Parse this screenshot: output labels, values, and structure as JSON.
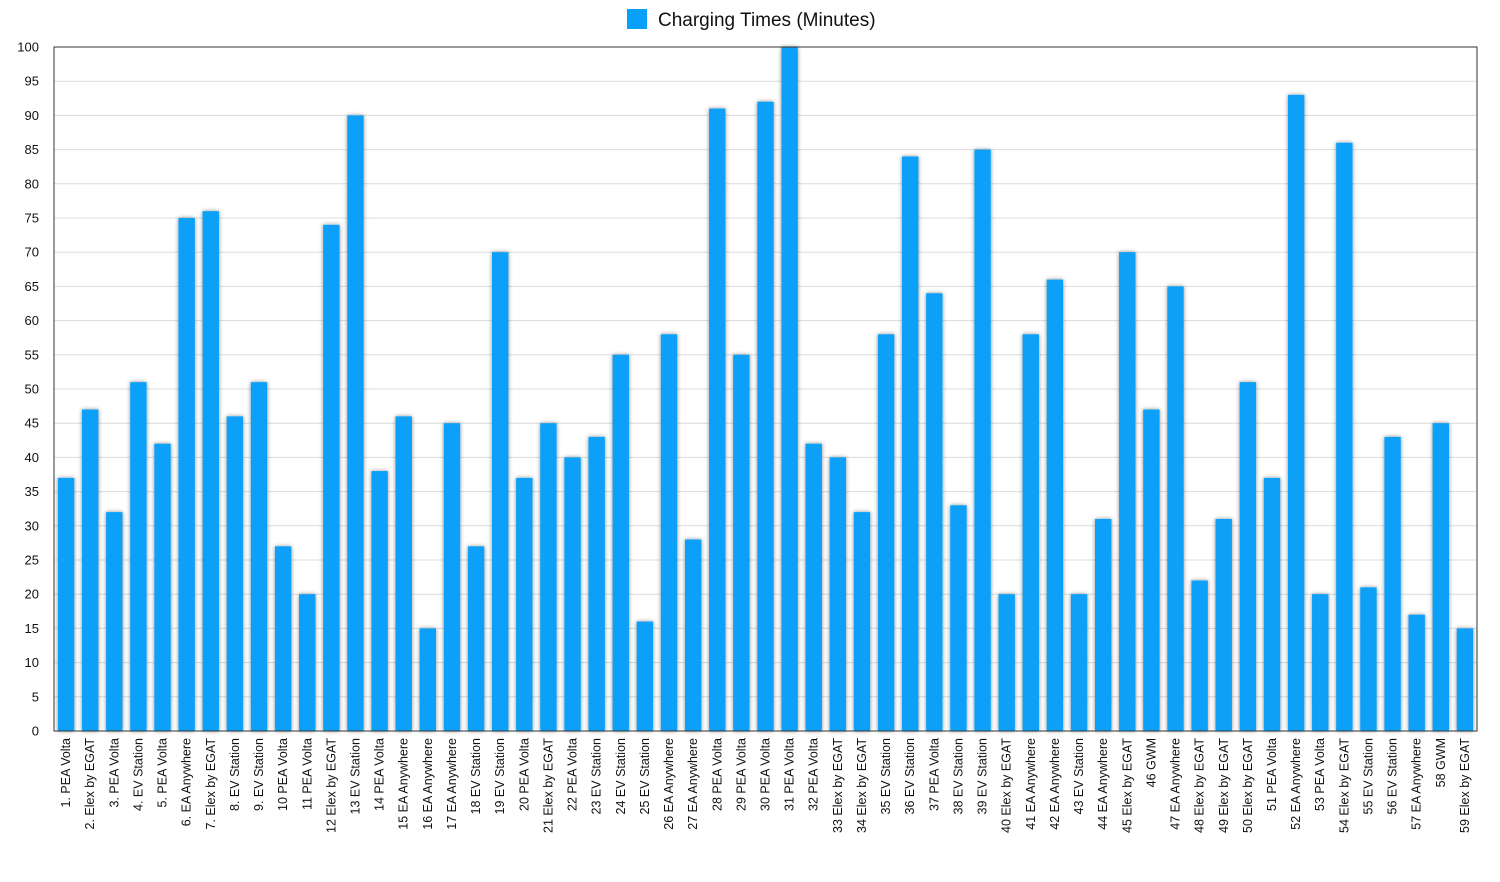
{
  "chart_data": {
    "type": "bar",
    "legend": {
      "position": "top-center"
    },
    "series": [
      {
        "name": "Charging Times (Minutes)",
        "color": "#08A0F8",
        "values": [
          37,
          47,
          32,
          51,
          42,
          75,
          76,
          46,
          51,
          27,
          20,
          74,
          90,
          38,
          46,
          15,
          45,
          27,
          70,
          37,
          45,
          40,
          43,
          55,
          16,
          58,
          28,
          91,
          55,
          92,
          100,
          42,
          40,
          32,
          58,
          84,
          64,
          33,
          85,
          20,
          58,
          66,
          20,
          31,
          70,
          47,
          65,
          22,
          31,
          51,
          37,
          93,
          20,
          86,
          21,
          43,
          17,
          45,
          15
        ]
      }
    ],
    "categories": [
      "1. PEA Volta",
      "2. Elex by EGAT",
      "3. PEA Volta",
      "4. EV Station",
      "5. PEA Volta",
      "6. EA Anywhere",
      "7. Elex by EGAT",
      "8. EV Station",
      "9. EV Station",
      "10 PEA Volta",
      "11 PEA Volta",
      "12 Elex by EGAT",
      "13 EV Station",
      "14 PEA Volta",
      "15 EA Anywhere",
      "16 EA Anywhere",
      "17 EA Anywhere",
      "18 EV Station",
      "19 EV Station",
      "20 PEA Volta",
      "21 Elex by EGAT",
      "22 PEA Volta",
      "23 EV Station",
      "24 EV Station",
      "25 EV Station",
      "26 EA Anywhere",
      "27 EA Anywhere",
      "28 PEA Volta",
      "29 PEA Volta",
      "30 PEA Volta",
      "31 PEA Volta",
      "32 PEA Volta",
      "33 Elex by EGAT",
      "34 Elex by EGAT",
      "35 EV Station",
      "36 EV Station",
      "37 PEA Volta",
      "38 EV Station",
      "39 EV Station",
      "40 Elex by EGAT",
      "41 EA Anywhere",
      "42 EA Anywhere",
      "43 EV Station",
      "44 EA Anywhere",
      "45 Elex by EGAT",
      "46 GWM",
      "47 EA Anywhere",
      "48 Elex by EGAT",
      "49 Elex by EGAT",
      "50 Elex by EGAT",
      "51 PEA Volta",
      "52 EA Anywhere",
      "53 PEA Volta",
      "54 Elex by EGAT",
      "55 EV Station",
      "56 EV Station",
      "57 EA Anywhere",
      "58 GWM",
      "59 Elex by EGAT"
    ],
    "ylim": [
      0,
      100
    ],
    "ytick_step": 5,
    "grid": true
  }
}
